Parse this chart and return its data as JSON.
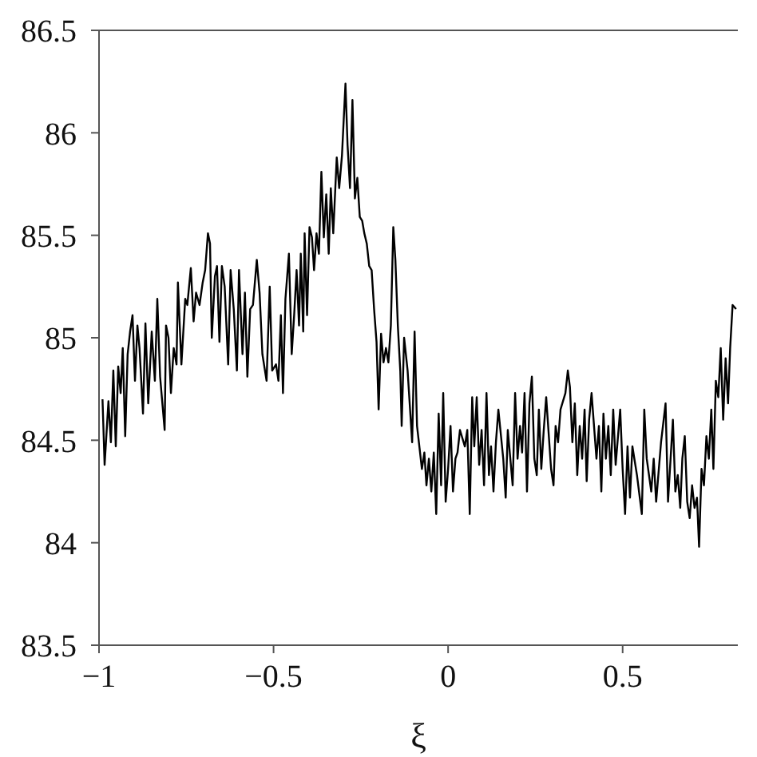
{
  "chart_data": {
    "type": "line",
    "xlabel": "ξ",
    "x": [
      -0.99,
      -0.984,
      -0.973,
      -0.966,
      -0.959,
      -0.952,
      -0.945,
      -0.938,
      -0.932,
      -0.925,
      -0.918,
      -0.911,
      -0.904,
      -0.897,
      -0.89,
      -0.884,
      -0.874,
      -0.867,
      -0.859,
      -0.849,
      -0.84,
      -0.833,
      -0.825,
      -0.812,
      -0.808,
      -0.801,
      -0.794,
      -0.786,
      -0.778,
      -0.774,
      -0.764,
      -0.753,
      -0.747,
      -0.737,
      -0.729,
      -0.722,
      -0.712,
      -0.703,
      -0.696,
      -0.688,
      -0.682,
      -0.677,
      -0.668,
      -0.662,
      -0.655,
      -0.648,
      -0.64,
      -0.63,
      -0.623,
      -0.614,
      -0.605,
      -0.599,
      -0.589,
      -0.582,
      -0.575,
      -0.567,
      -0.559,
      -0.548,
      -0.54,
      -0.532,
      -0.52,
      -0.511,
      -0.504,
      -0.493,
      -0.486,
      -0.479,
      -0.473,
      -0.466,
      -0.456,
      -0.448,
      -0.441,
      -0.434,
      -0.427,
      -0.422,
      -0.415,
      -0.411,
      -0.404,
      -0.397,
      -0.39,
      -0.384,
      -0.377,
      -0.37,
      -0.363,
      -0.356,
      -0.349,
      -0.342,
      -0.336,
      -0.329,
      -0.319,
      -0.312,
      -0.304,
      -0.294,
      -0.288,
      -0.281,
      -0.274,
      -0.267,
      -0.26,
      -0.253,
      -0.246,
      -0.24,
      -0.233,
      -0.226,
      -0.219,
      -0.212,
      -0.205,
      -0.199,
      -0.192,
      -0.185,
      -0.178,
      -0.171,
      -0.164,
      -0.157,
      -0.151,
      -0.144,
      -0.137,
      -0.133,
      -0.126,
      -0.116,
      -0.103,
      -0.096,
      -0.089,
      -0.075,
      -0.068,
      -0.062,
      -0.055,
      -0.048,
      -0.041,
      -0.034,
      -0.027,
      -0.02,
      -0.014,
      -0.007,
      0,
      0.007,
      0.014,
      0.021,
      0.027,
      0.034,
      0.048,
      0.055,
      0.062,
      0.069,
      0.075,
      0.082,
      0.089,
      0.096,
      0.103,
      0.11,
      0.117,
      0.123,
      0.13,
      0.137,
      0.144,
      0.158,
      0.165,
      0.171,
      0.185,
      0.192,
      0.199,
      0.206,
      0.212,
      0.219,
      0.226,
      0.233,
      0.24,
      0.247,
      0.254,
      0.26,
      0.267,
      0.274,
      0.281,
      0.295,
      0.302,
      0.308,
      0.315,
      0.322,
      0.336,
      0.343,
      0.349,
      0.356,
      0.363,
      0.37,
      0.377,
      0.384,
      0.391,
      0.397,
      0.404,
      0.411,
      0.425,
      0.432,
      0.439,
      0.445,
      0.452,
      0.459,
      0.466,
      0.473,
      0.48,
      0.493,
      0.5,
      0.507,
      0.514,
      0.521,
      0.528,
      0.541,
      0.555,
      0.562,
      0.569,
      0.582,
      0.589,
      0.596,
      0.61,
      0.623,
      0.63,
      0.644,
      0.651,
      0.658,
      0.665,
      0.671,
      0.678,
      0.685,
      0.692,
      0.699,
      0.706,
      0.713,
      0.719,
      0.726,
      0.733,
      0.74,
      0.747,
      0.754,
      0.76,
      0.767,
      0.774,
      0.781,
      0.788,
      0.795,
      0.802,
      0.808,
      0.815,
      0.825
    ],
    "series": [
      {
        "color": "#000000",
        "values": [
          84.7,
          84.38,
          84.69,
          84.49,
          84.84,
          84.47,
          84.86,
          84.73,
          84.95,
          84.52,
          84.92,
          85.03,
          85.11,
          84.79,
          85.06,
          84.95,
          84.63,
          85.07,
          84.68,
          85.03,
          84.79,
          85.19,
          84.81,
          84.55,
          85.06,
          85.0,
          84.73,
          84.95,
          84.87,
          85.27,
          84.87,
          85.19,
          85.16,
          85.34,
          85.08,
          85.22,
          85.16,
          85.27,
          85.33,
          85.51,
          85.46,
          85.0,
          85.3,
          85.35,
          84.98,
          85.35,
          85.25,
          84.87,
          85.33,
          85.14,
          84.84,
          85.33,
          84.92,
          85.22,
          84.81,
          85.14,
          85.16,
          85.38,
          85.22,
          84.92,
          84.79,
          85.25,
          84.84,
          84.87,
          84.79,
          85.11,
          84.73,
          85.19,
          85.41,
          84.92,
          85.11,
          85.33,
          85.06,
          85.41,
          85.03,
          85.51,
          85.11,
          85.54,
          85.49,
          85.33,
          85.51,
          85.41,
          85.81,
          85.49,
          85.7,
          85.41,
          85.73,
          85.51,
          85.88,
          85.73,
          85.89,
          86.24,
          85.94,
          85.73,
          86.16,
          85.68,
          85.78,
          85.59,
          85.57,
          85.51,
          85.46,
          85.35,
          85.33,
          85.14,
          84.98,
          84.65,
          85.02,
          84.88,
          84.95,
          84.88,
          85.06,
          85.54,
          85.38,
          85.06,
          84.84,
          84.57,
          85.0,
          84.84,
          84.49,
          85.03,
          84.57,
          84.36,
          84.44,
          84.28,
          84.41,
          84.25,
          84.44,
          84.14,
          84.63,
          84.28,
          84.73,
          84.2,
          84.36,
          84.57,
          84.25,
          84.41,
          84.44,
          84.55,
          84.47,
          84.55,
          84.14,
          84.71,
          84.47,
          84.71,
          84.38,
          84.55,
          84.28,
          84.73,
          84.33,
          84.47,
          84.25,
          84.49,
          84.65,
          84.41,
          84.22,
          84.55,
          84.28,
          84.73,
          84.41,
          84.57,
          84.44,
          84.73,
          84.25,
          84.68,
          84.81,
          84.41,
          84.33,
          84.65,
          84.36,
          84.55,
          84.71,
          84.36,
          84.28,
          84.57,
          84.49,
          84.65,
          84.73,
          84.84,
          84.76,
          84.49,
          84.68,
          84.33,
          84.57,
          84.41,
          84.65,
          84.3,
          84.6,
          84.73,
          84.41,
          84.57,
          84.25,
          84.63,
          84.41,
          84.57,
          84.33,
          84.65,
          84.38,
          84.65,
          84.36,
          84.14,
          84.47,
          84.22,
          84.47,
          84.33,
          84.14,
          84.65,
          84.41,
          84.25,
          84.41,
          84.2,
          84.49,
          84.68,
          84.2,
          84.6,
          84.25,
          84.33,
          84.17,
          84.41,
          84.52,
          84.2,
          84.12,
          84.28,
          84.17,
          84.22,
          83.98,
          84.36,
          84.28,
          84.52,
          84.41,
          84.65,
          84.36,
          84.79,
          84.71,
          84.95,
          84.6,
          84.9,
          84.68,
          84.95,
          85.16,
          85.14
        ]
      }
    ],
    "xlim": [
      -1,
      0.83
    ],
    "ylim": [
      83.5,
      86.5
    ],
    "xticks": [
      -1,
      -0.5,
      0,
      0.5
    ],
    "yticks": [
      83.5,
      84,
      84.5,
      85,
      85.5,
      86,
      86.5
    ],
    "line_style": "solid"
  }
}
